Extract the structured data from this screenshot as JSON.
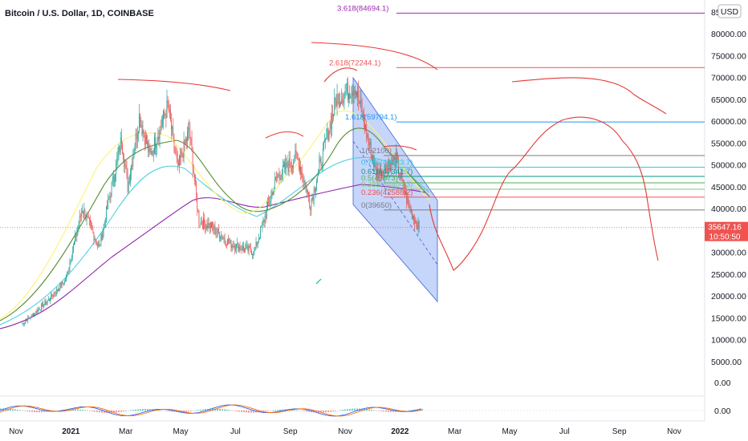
{
  "chart_data": {
    "type": "candlestick",
    "title": "Bitcoin / U.S. Dollar, 1D, COINBASE",
    "currency_label": "USD",
    "x_ticks": [
      "Nov",
      "2021",
      "Mar",
      "May",
      "Jul",
      "Sep",
      "Nov",
      "2022",
      "Mar",
      "May",
      "Jul",
      "Sep",
      "Nov"
    ],
    "bold_ticks": [
      "2021",
      "2022"
    ],
    "y_ticks": [
      0,
      5000,
      10000,
      15000,
      20000,
      25000,
      30000,
      35000,
      40000,
      45000,
      50000,
      55000,
      60000,
      65000,
      70000,
      75000,
      80000
    ],
    "y_tick_labels": [
      "0.00",
      "5000.00",
      "10000.00",
      "15000.00",
      "20000.00",
      "25000.00",
      "30000.00",
      "35000.00",
      "40000.00",
      "45000.00",
      "50000.00",
      "55000.00",
      "60000.00",
      "65000.00",
      "70000.00",
      "75000.00",
      "80000.00"
    ],
    "y_top_partial": "85",
    "ylim": [
      0,
      85000
    ],
    "last_price": {
      "value": 35647.16,
      "label": "35647.16",
      "countdown": "10:50:50",
      "color": "#ef5350"
    },
    "price_series": [
      [
        "2020-11-01",
        13500
      ],
      [
        "2020-11-15",
        16000
      ],
      [
        "2020-12-01",
        19000
      ],
      [
        "2020-12-20",
        23500
      ],
      [
        "2021-01-08",
        40000
      ],
      [
        "2021-01-27",
        31000
      ],
      [
        "2021-02-10",
        45000
      ],
      [
        "2021-02-21",
        56000
      ],
      [
        "2021-02-28",
        45000
      ],
      [
        "2021-03-13",
        61000
      ],
      [
        "2021-03-25",
        52000
      ],
      [
        "2021-04-14",
        63500
      ],
      [
        "2021-04-25",
        49000
      ],
      [
        "2021-05-08",
        58000
      ],
      [
        "2021-05-19",
        37000
      ],
      [
        "2021-06-01",
        36000
      ],
      [
        "2021-06-22",
        32000
      ],
      [
        "2021-07-20",
        30000
      ],
      [
        "2021-08-14",
        47000
      ],
      [
        "2021-09-06",
        52000
      ],
      [
        "2021-09-21",
        41000
      ],
      [
        "2021-10-20",
        65000
      ],
      [
        "2021-11-10",
        68000
      ],
      [
        "2021-12-04",
        48000
      ],
      [
        "2021-12-26",
        51000
      ],
      [
        "2022-01-10",
        40000
      ],
      [
        "2022-01-21",
        35600
      ]
    ],
    "fib_levels": [
      {
        "label": "3.618(84694.1)",
        "value": 84694.1,
        "color": "#9c27b0"
      },
      {
        "label": "2.618(72244.1)",
        "value": 72244.1,
        "color": "#ef5350"
      },
      {
        "label": "1.618(59794.1)",
        "value": 59794.1,
        "color": "#2196f3"
      },
      {
        "label": "1(52100)",
        "value": 52100,
        "color": "#787b86"
      },
      {
        "label": "0.786(49433.7)",
        "value": 49433.7,
        "color": "#26c6da"
      },
      {
        "label": "0.618(47341.7)",
        "value": 47341.7,
        "color": "#089981"
      },
      {
        "label": "0.5(45873)",
        "value": 45873,
        "color": "#4caf50"
      },
      {
        "label": "0.382(44404.3)",
        "value": 44404.3,
        "color": "#81c784"
      },
      {
        "label": "0.236(42588.2)",
        "value": 42588.2,
        "color": "#ef5350"
      },
      {
        "label": "0(39650)",
        "value": 39650,
        "color": "#787b86"
      }
    ],
    "indicator": {
      "type": "oscillator",
      "zero_label": "0.00"
    }
  }
}
